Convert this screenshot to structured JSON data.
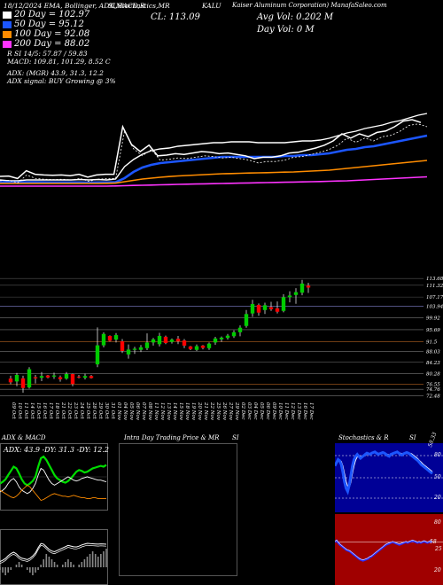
{
  "header": {
    "stamp": "18/12/2024 EMA, Bollinger, ADX,MACD,R",
    "sections": "SI,Stochastics,MR",
    "symbol_label": "CL: 113.09",
    "company": "Kaiser Aluminum Corporation) ManafaSaleo.com",
    "ticker": "KALU",
    "avg_vol": "Avg Vol: 0.202  M",
    "day_vol": "Day Vol: 0  M"
  },
  "ema_legend": [
    {
      "label": "20  Day = 102.97",
      "color": "#ffffff"
    },
    {
      "label": "50  Day = 95.12",
      "color": "#1c56ff"
    },
    {
      "label": "100  Day = 92.08",
      "color": "#ff8c00"
    },
    {
      "label": "200  Day = 88.02",
      "color": "#ff33ff"
    }
  ],
  "indicator_lines": [
    "R                    SI 14/5: 57.87 / 59.83",
    "MACD: 109.81, 101.29, 8.52  C",
    "ADX:                      (MGR) 43.9,  31.3,  12.2",
    "ADX  signal:                       BUY Growing @ 3%"
  ],
  "price_levels": [
    {
      "label": "113.68",
      "price": 113.68
    },
    {
      "label": "111.32",
      "price": 111.32
    },
    {
      "label": "107.17",
      "price": 107.17
    },
    {
      "label": "103.94",
      "price": 103.94
    },
    {
      "label": "99.92",
      "price": 99.92
    },
    {
      "label": "95.69",
      "price": 95.69
    },
    {
      "label": "91.5",
      "price": 91.5
    },
    {
      "label": "88.03",
      "price": 88.03
    },
    {
      "label": "84.23",
      "price": 84.23
    },
    {
      "label": "80.28",
      "price": 80.28
    },
    {
      "label": "76.55",
      "price": 76.55
    },
    {
      "label": "74.76",
      "price": 74.76
    },
    {
      "label": "72.48",
      "price": 72.48
    }
  ],
  "chart_data": {
    "type": "candlestick",
    "dates": [
      "09 Oct",
      "10 Oct",
      "11 Oct",
      "14 Oct",
      "15 Oct",
      "16 Oct",
      "17 Oct",
      "18 Oct",
      "21 Oct",
      "22 Oct",
      "23 Oct",
      "24 Oct",
      "25 Oct",
      "28 Oct",
      "29 Oct",
      "30 Oct",
      "31 Oct",
      "01 Nov",
      "04 Nov",
      "05 Nov",
      "06 Nov",
      "07 Nov",
      "08 Nov",
      "11 Nov",
      "12 Nov",
      "13 Nov",
      "14 Nov",
      "15 Nov",
      "18 Nov",
      "19 Nov",
      "20 Nov",
      "21 Nov",
      "22 Nov",
      "25 Nov",
      "26 Nov",
      "27 Nov",
      "29 Nov",
      "02 Dec",
      "03 Dec",
      "04 Dec",
      "05 Dec",
      "06 Dec",
      "09 Dec",
      "10 Dec",
      "11 Dec",
      "12 Dec",
      "13 Dec",
      "16 Dec",
      "17 Dec"
    ],
    "candles": [
      {
        "o": 78.5,
        "h": 79.5,
        "l": 76.5,
        "c": 77.2
      },
      {
        "o": 77.5,
        "h": 80.5,
        "l": 75.8,
        "c": 79.8
      },
      {
        "o": 78.6,
        "h": 79.5,
        "l": 73.5,
        "c": 75.2
      },
      {
        "o": 75.4,
        "h": 82.5,
        "l": 75.0,
        "c": 81.8
      },
      {
        "o": 79.0,
        "h": 79.8,
        "l": 76.8,
        "c": 78.6
      },
      {
        "o": 78.8,
        "h": 80.8,
        "l": 77.6,
        "c": 79.4
      },
      {
        "o": 79.6,
        "h": 79.8,
        "l": 78.6,
        "c": 78.9
      },
      {
        "o": 79.2,
        "h": 80.6,
        "l": 78.4,
        "c": 79.6
      },
      {
        "o": 79.0,
        "h": 79.6,
        "l": 77.4,
        "c": 78.3
      },
      {
        "o": 78.5,
        "h": 80.8,
        "l": 78.1,
        "c": 80.1
      },
      {
        "o": 80.1,
        "h": 80.2,
        "l": 75.8,
        "c": 76.6
      },
      {
        "o": 79.2,
        "h": 79.8,
        "l": 78.6,
        "c": 79.0
      },
      {
        "o": 78.8,
        "h": 80.2,
        "l": 78.2,
        "c": 79.4
      },
      {
        "o": 79.4,
        "h": 79.8,
        "l": 78.5,
        "c": 78.7
      },
      {
        "o": 83.5,
        "h": 96.5,
        "l": 82.5,
        "c": 90.2
      },
      {
        "o": 90.2,
        "h": 94.8,
        "l": 89.5,
        "c": 94.2
      },
      {
        "o": 93.5,
        "h": 93.7,
        "l": 91.5,
        "c": 91.8
      },
      {
        "o": 92.2,
        "h": 94.5,
        "l": 91.2,
        "c": 93.8
      },
      {
        "o": 91.6,
        "h": 92.4,
        "l": 87.5,
        "c": 88.2
      },
      {
        "o": 87.0,
        "h": 90.5,
        "l": 85.5,
        "c": 88.7
      },
      {
        "o": 88.6,
        "h": 89.7,
        "l": 87.2,
        "c": 89.0
      },
      {
        "o": 88.6,
        "h": 90.3,
        "l": 87.8,
        "c": 89.5
      },
      {
        "o": 89.2,
        "h": 94.4,
        "l": 88.5,
        "c": 91.2
      },
      {
        "o": 91.2,
        "h": 92.8,
        "l": 90.1,
        "c": 92.3
      },
      {
        "o": 90.6,
        "h": 94.6,
        "l": 89.8,
        "c": 93.5
      },
      {
        "o": 93.2,
        "h": 93.6,
        "l": 90.6,
        "c": 91.0
      },
      {
        "o": 91.4,
        "h": 92.6,
        "l": 90.8,
        "c": 92.2
      },
      {
        "o": 92.5,
        "h": 93.5,
        "l": 90.6,
        "c": 91.6
      },
      {
        "o": 91.9,
        "h": 92.4,
        "l": 89.2,
        "c": 90.1
      },
      {
        "o": 89.8,
        "h": 90.0,
        "l": 88.5,
        "c": 88.9
      },
      {
        "o": 88.6,
        "h": 90.5,
        "l": 88.2,
        "c": 89.9
      },
      {
        "o": 90.1,
        "h": 90.3,
        "l": 88.8,
        "c": 89.3
      },
      {
        "o": 89.2,
        "h": 91.2,
        "l": 88.6,
        "c": 90.8
      },
      {
        "o": 91.2,
        "h": 93.2,
        "l": 90.4,
        "c": 92.6
      },
      {
        "o": 92.3,
        "h": 93.3,
        "l": 91.4,
        "c": 92.9
      },
      {
        "o": 92.8,
        "h": 94.2,
        "l": 92.2,
        "c": 93.6
      },
      {
        "o": 93.4,
        "h": 95.5,
        "l": 92.8,
        "c": 94.8
      },
      {
        "o": 94.8,
        "h": 97.2,
        "l": 93.4,
        "c": 96.4
      },
      {
        "o": 97.0,
        "h": 102.6,
        "l": 96.4,
        "c": 101.2
      },
      {
        "o": 101.4,
        "h": 106.2,
        "l": 100.2,
        "c": 104.7
      },
      {
        "o": 104.4,
        "h": 104.9,
        "l": 100.6,
        "c": 101.7
      },
      {
        "o": 102.6,
        "h": 105.2,
        "l": 101.2,
        "c": 104.3
      },
      {
        "o": 103.6,
        "h": 105.5,
        "l": 102.3,
        "c": 102.9
      },
      {
        "o": 103.2,
        "h": 105.6,
        "l": 101.4,
        "c": 102.0
      },
      {
        "o": 102.3,
        "h": 108.2,
        "l": 101.8,
        "c": 107.1
      },
      {
        "o": 107.1,
        "h": 109.2,
        "l": 105.3,
        "c": 107.7
      },
      {
        "o": 107.9,
        "h": 110.3,
        "l": 104.8,
        "c": 108.9
      },
      {
        "o": 108.7,
        "h": 113.2,
        "l": 107.8,
        "c": 111.9
      },
      {
        "o": 111.2,
        "h": 112.2,
        "l": 108.6,
        "c": 110.5
      }
    ],
    "volume_close": [
      2.0,
      2.05,
      1.7,
      2.8,
      2.3,
      2.2,
      2.15,
      2.2,
      2.1,
      2.3,
      1.9,
      2.2,
      2.3,
      2.3,
      9.0,
      6.5,
      5.5,
      6.4,
      4.9,
      5.0,
      5.2,
      5.1,
      5.3,
      5.5,
      5.4,
      5.2,
      5.3,
      5.1,
      4.9,
      4.5,
      4.7,
      4.7,
      4.9,
      5.3,
      5.4,
      5.7,
      6.0,
      6.4,
      7.0,
      8.0,
      7.4,
      8.0,
      7.6,
      8.2,
      8.4,
      9.0,
      9.8,
      10.0,
      9.6
    ],
    "ema_series": [
      {
        "name": "20 Day",
        "color": "#ffffff",
        "values": [
          1.0,
          0.9,
          0.9,
          1.0,
          1.0,
          1.0,
          1.0,
          1.0,
          1.0,
          1.05,
          1.0,
          1.05,
          1.0,
          1.1,
          2.5,
          3.3,
          3.9,
          4.3,
          4.5,
          4.6,
          4.8,
          4.9,
          5.0,
          5.1,
          5.2,
          5.2,
          5.3,
          5.3,
          5.3,
          5.2,
          5.2,
          5.2,
          5.2,
          5.3,
          5.4,
          5.4,
          5.5,
          5.7,
          6.0,
          6.3,
          6.5,
          6.8,
          7.0,
          7.2,
          7.5,
          7.7,
          8.0,
          8.3,
          8.5
        ]
      },
      {
        "name": "50 Day",
        "color": "#1c56ff",
        "values": [
          0.75,
          0.75,
          0.72,
          0.74,
          0.74,
          0.73,
          0.72,
          0.72,
          0.72,
          0.72,
          0.7,
          0.72,
          0.72,
          0.74,
          1.2,
          1.9,
          2.4,
          2.7,
          2.9,
          3.0,
          3.1,
          3.2,
          3.3,
          3.4,
          3.5,
          3.6,
          3.6,
          3.6,
          3.6,
          3.6,
          3.6,
          3.6,
          3.7,
          3.7,
          3.8,
          3.8,
          3.9,
          4.0,
          4.2,
          4.4,
          4.5,
          4.7,
          4.8,
          5.0,
          5.2,
          5.4,
          5.6,
          5.8,
          6.0
        ]
      },
      {
        "name": "100 Day",
        "color": "#ff8c00",
        "values": [
          0.6,
          0.6,
          0.6,
          0.6,
          0.6,
          0.6,
          0.6,
          0.6,
          0.6,
          0.6,
          0.6,
          0.6,
          0.62,
          0.64,
          0.8,
          0.95,
          1.1,
          1.2,
          1.3,
          1.38,
          1.45,
          1.5,
          1.55,
          1.6,
          1.65,
          1.7,
          1.72,
          1.75,
          1.78,
          1.8,
          1.82,
          1.85,
          1.88,
          1.9,
          1.95,
          2.0,
          2.05,
          2.1,
          2.2,
          2.3,
          2.4,
          2.5,
          2.6,
          2.7,
          2.8,
          2.9,
          3.0,
          3.1,
          3.2
        ]
      },
      {
        "name": "200 Day",
        "color": "#ff33ff",
        "values": [
          0.3,
          0.3,
          0.3,
          0.3,
          0.3,
          0.3,
          0.3,
          0.3,
          0.3,
          0.3,
          0.3,
          0.3,
          0.3,
          0.32,
          0.35,
          0.38,
          0.4,
          0.42,
          0.45,
          0.47,
          0.5,
          0.52,
          0.54,
          0.56,
          0.58,
          0.6,
          0.62,
          0.64,
          0.66,
          0.68,
          0.7,
          0.72,
          0.74,
          0.76,
          0.78,
          0.8,
          0.82,
          0.85,
          0.88,
          0.9,
          0.95,
          1.0,
          1.05,
          1.1,
          1.15,
          1.2,
          1.25,
          1.3,
          1.35
        ]
      }
    ],
    "ylim": [
      72,
      115
    ],
    "up_color": "#00cc00",
    "down_color": "#ff0000"
  },
  "panels": {
    "adx_title": "ADX  & MACD",
    "adx_values": "ADX: 43.9 -DY: 31.3 -DY: 12.2",
    "mr_title": "Intra Day Trading Price  & MR",
    "mr_si": "SI",
    "stoch_title": "Stochastics & R",
    "stoch_si": "SI",
    "stoch_value": "58.33",
    "stoch_ticks": [
      "80",
      "50",
      "20"
    ],
    "rsi_ticks": [
      "80",
      "58",
      "25",
      "20"
    ]
  },
  "indicators": {
    "adx": [
      30,
      32,
      35,
      40,
      45,
      50,
      48,
      42,
      35,
      30,
      28,
      30,
      33,
      38,
      50,
      60,
      62,
      58,
      52,
      46,
      40,
      36,
      34,
      32,
      31,
      33,
      36,
      40,
      44,
      46,
      45,
      43,
      44,
      46,
      48,
      49,
      50,
      51,
      50,
      52
    ],
    "di_plus": [
      20,
      22,
      25,
      30,
      34,
      36,
      32,
      26,
      22,
      20,
      18,
      20,
      24,
      30,
      40,
      48,
      46,
      40,
      34,
      30,
      28,
      30,
      32,
      34,
      36,
      38,
      36,
      34,
      33,
      34,
      36,
      37,
      38,
      37,
      36,
      35,
      34,
      34,
      33,
      32
    ],
    "di_minus": [
      22,
      20,
      18,
      16,
      14,
      13,
      15,
      18,
      22,
      25,
      28,
      26,
      22,
      18,
      14,
      10,
      11,
      13,
      15,
      17,
      18,
      17,
      16,
      15,
      15,
      14,
      15,
      16,
      15,
      14,
      13,
      13,
      12,
      12,
      13,
      13,
      12,
      12,
      12,
      12
    ],
    "macd_hist": [
      -1,
      -2,
      -3,
      -2,
      -1,
      0,
      1,
      2,
      1,
      0,
      -1,
      -2,
      -3,
      -2,
      -1,
      1,
      3,
      5,
      4,
      3,
      2,
      1,
      0,
      1,
      2,
      3,
      2,
      1,
      0,
      1,
      2,
      3,
      4,
      5,
      6,
      5,
      4,
      5,
      6,
      7
    ],
    "stoch_k": [
      70,
      75,
      80,
      78,
      72,
      60,
      45,
      35,
      30,
      40,
      55,
      70,
      80,
      85,
      88,
      85,
      82,
      84,
      86,
      88,
      90,
      89,
      88,
      90,
      91,
      92,
      90,
      88,
      89,
      90,
      91,
      90,
      88,
      86,
      85,
      88,
      89,
      90,
      91,
      92,
      90,
      88,
      87,
      89,
      90,
      91,
      90,
      88,
      86,
      84,
      82,
      80,
      78,
      75,
      72,
      70,
      68,
      66,
      64,
      62,
      60,
      58
    ],
    "stoch_d": [
      72,
      74,
      77,
      79,
      77,
      70,
      58,
      46,
      38,
      36,
      44,
      58,
      70,
      79,
      84,
      86,
      85,
      84,
      85,
      86,
      88,
      89,
      89,
      89,
      90,
      91,
      91,
      90,
      89,
      89,
      90,
      90,
      89,
      88,
      87,
      87,
      88,
      89,
      90,
      91,
      91,
      90,
      89,
      88,
      89,
      90,
      90,
      90,
      89,
      87,
      85,
      83,
      81,
      78,
      76,
      73,
      71,
      69,
      67,
      65,
      63,
      61
    ],
    "rsi": [
      58,
      60,
      57,
      54,
      52,
      50,
      48,
      46,
      45,
      44,
      42,
      40,
      38,
      36,
      34,
      32,
      31,
      30,
      31,
      32,
      33,
      35,
      36,
      38,
      40,
      42,
      44,
      46,
      48,
      50,
      52,
      54,
      55,
      56,
      57,
      58,
      57,
      56,
      55,
      54,
      55,
      56,
      57,
      58,
      57,
      58,
      59,
      60,
      59,
      58,
      57,
      58,
      57,
      58,
      59,
      58,
      57,
      58,
      59,
      58
    ]
  }
}
